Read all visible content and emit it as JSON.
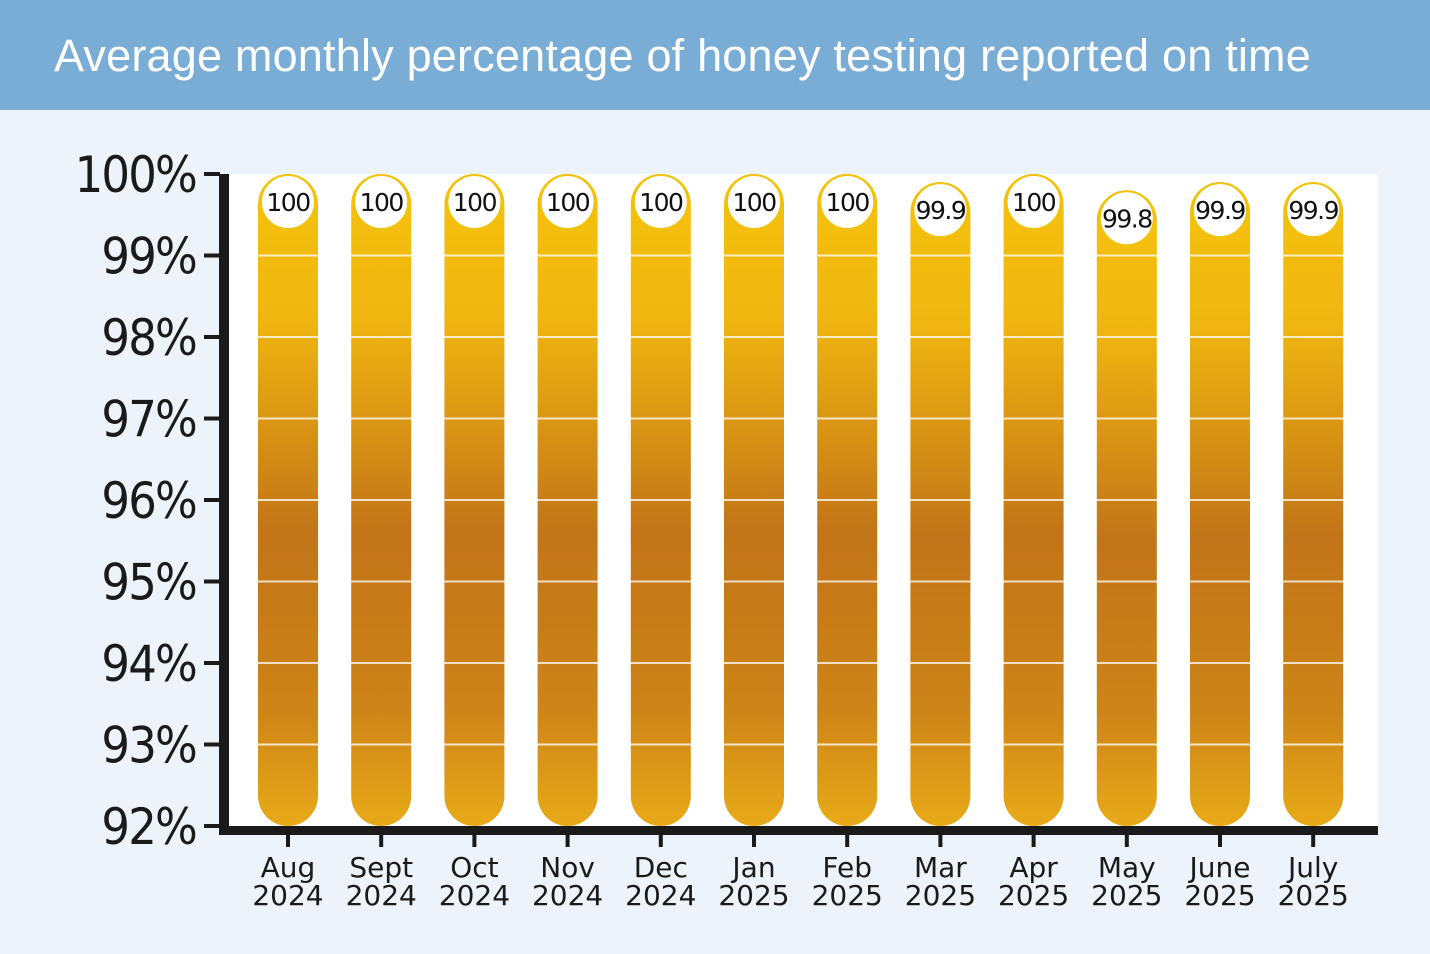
{
  "title": "Average monthly percentage of honey testing reported on time",
  "colors": {
    "header_bg": "#7aadd6",
    "page_bg": "#edf3fa",
    "plot_bg": "#ffffff",
    "bar_light": "#f5c30c",
    "bar_dark": "#c27418",
    "axis": "#1a1a1a",
    "bubble_border": "#f0c20a"
  },
  "chart_data": {
    "type": "bar",
    "title": "Average monthly percentage of honey testing reported on time",
    "categories": [
      [
        "Aug",
        "2024"
      ],
      [
        "Sept",
        "2024"
      ],
      [
        "Oct",
        "2024"
      ],
      [
        "Nov",
        "2024"
      ],
      [
        "Dec",
        "2024"
      ],
      [
        "Jan",
        "2025"
      ],
      [
        "Feb",
        "2025"
      ],
      [
        "Mar",
        "2025"
      ],
      [
        "Apr",
        "2025"
      ],
      [
        "May",
        "2025"
      ],
      [
        "June",
        "2025"
      ],
      [
        "July",
        "2025"
      ]
    ],
    "values": [
      100,
      100,
      100,
      100,
      100,
      100,
      100,
      99.9,
      100,
      99.8,
      99.9,
      99.9
    ],
    "data_labels": [
      "100",
      "100",
      "100",
      "100",
      "100",
      "100",
      "100",
      "99.9",
      "100",
      "99.8",
      "99.9",
      "99.9"
    ],
    "y_ticks": [
      92,
      93,
      94,
      95,
      96,
      97,
      98,
      99,
      100
    ],
    "y_tick_labels": [
      "92%",
      "93%",
      "94%",
      "95%",
      "96%",
      "97%",
      "98%",
      "99%",
      "100%"
    ],
    "ylim": [
      92,
      100
    ],
    "grid": true,
    "legend": "none"
  }
}
